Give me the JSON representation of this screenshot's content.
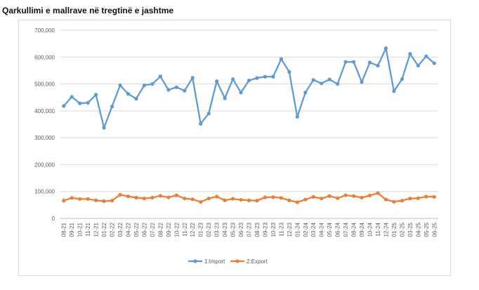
{
  "chart_data": {
    "type": "line",
    "title": "Qarkullimi e mallrave në tregtinë e jashtme",
    "xlabel": "",
    "ylabel": "",
    "ylim": [
      0,
      700000
    ],
    "yticks": [
      "0",
      "100,000",
      "200,000",
      "300,000",
      "400,000",
      "500,000",
      "600,000",
      "700,000"
    ],
    "ytick_values": [
      0,
      100000,
      200000,
      300000,
      400000,
      500000,
      600000,
      700000
    ],
    "categories": [
      "08-21",
      "09-21",
      "10-21",
      "11-21",
      "12-21",
      "01-22",
      "02-22",
      "03-22",
      "04-22",
      "05-22",
      "06-22",
      "07-22",
      "08-22",
      "09-22",
      "10-22",
      "11-22",
      "12-22",
      "01-23",
      "02-23",
      "03-23",
      "04-23",
      "05-23",
      "06-23",
      "07-23",
      "08-23",
      "09-23",
      "10-23",
      "11-23",
      "12-23",
      "01-24",
      "02-24",
      "03-24",
      "04-24",
      "05-24",
      "06-24",
      "07-24",
      "08-24",
      "09-24",
      "10-24",
      "11-24",
      "12-24",
      "01-25",
      "02-25",
      "03-25",
      "04-25",
      "05-25",
      "06-25"
    ],
    "grid": true,
    "legend_position": "bottom",
    "series": [
      {
        "name": "1:Import",
        "color": "#5b9bd5",
        "values": [
          418000,
          452000,
          428000,
          430000,
          460000,
          337000,
          416000,
          495000,
          463000,
          445000,
          495000,
          500000,
          528000,
          478000,
          488000,
          475000,
          523000,
          352000,
          390000,
          510000,
          447000,
          518000,
          468000,
          513000,
          522000,
          527000,
          527000,
          593000,
          545000,
          378000,
          468000,
          515000,
          502000,
          517000,
          500000,
          582000,
          582000,
          507000,
          580000,
          568000,
          633000,
          473000,
          518000,
          612000,
          568000,
          603000,
          577000
        ]
      },
      {
        "name": "2:Export",
        "color": "#ed7d31",
        "values": [
          66000,
          76000,
          72000,
          72000,
          67000,
          64000,
          66000,
          88000,
          82000,
          77000,
          74000,
          77000,
          84000,
          78000,
          86000,
          74000,
          71000,
          61000,
          74000,
          81000,
          67000,
          73000,
          69000,
          67000,
          66000,
          78000,
          79000,
          76000,
          67000,
          60000,
          70000,
          80000,
          74000,
          83000,
          75000,
          86000,
          83000,
          77000,
          85000,
          94000,
          70000,
          62000,
          66000,
          74000,
          75000,
          81000,
          80000
        ]
      }
    ]
  }
}
